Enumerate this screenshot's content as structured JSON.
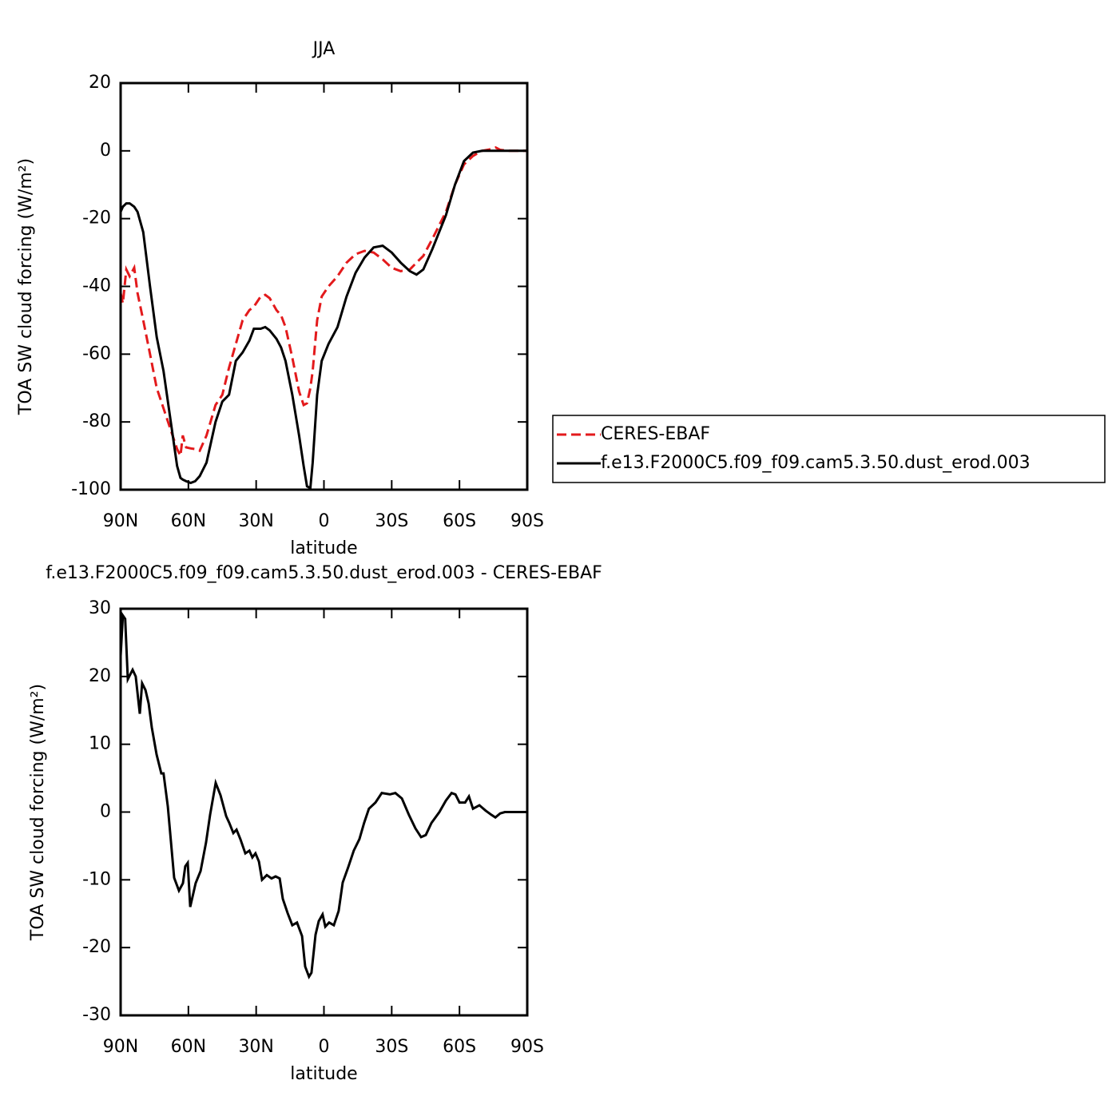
{
  "chart_data": [
    {
      "type": "line",
      "title": "JJA",
      "xlabel": "latitude",
      "ylabel": "TOA SW cloud forcing (W/m²)",
      "xlim": [
        90,
        -90
      ],
      "xticks": [
        {
          "value": 90,
          "label": "90N"
        },
        {
          "value": 60,
          "label": "60N"
        },
        {
          "value": 30,
          "label": "30N"
        },
        0,
        {
          "value": -30,
          "label": "30S"
        },
        {
          "value": -60,
          "label": "60S"
        },
        {
          "value": -90,
          "label": "90S"
        }
      ],
      "ylim": [
        -100,
        20
      ],
      "yticks": [
        -100,
        -80,
        -60,
        -40,
        -20,
        0,
        20
      ],
      "legend": "right",
      "x": [
        90,
        89,
        87.5,
        86,
        84,
        82.5,
        80,
        77,
        74,
        71,
        68,
        65,
        63.5,
        62.5,
        61,
        59,
        57,
        55,
        52,
        48,
        45,
        42,
        39,
        36,
        33,
        31,
        28,
        26,
        24,
        21,
        19,
        17,
        14,
        11,
        9,
        7.5,
        6,
        5,
        3,
        1,
        -2,
        -6,
        -10,
        -14,
        -18,
        -22,
        -26,
        -30,
        -34,
        -38,
        -41,
        -44,
        -48,
        -54,
        -58,
        -62,
        -66,
        -70,
        -74,
        -76,
        -78,
        -82,
        -90
      ],
      "series": [
        {
          "name": "CERES-EBAF",
          "color": "#e31a1c",
          "dash": true,
          "values": [
            -42,
            -45,
            -35,
            -37,
            -34.5,
            -42,
            -50,
            -60,
            -70,
            -76,
            -82,
            -88,
            -90,
            -84,
            -87.5,
            -87.8,
            -88,
            -88.5,
            -84,
            -75,
            -72,
            -64,
            -57,
            -50,
            -47,
            -46,
            -43,
            -42.5,
            -43.5,
            -47,
            -48.5,
            -52,
            -61,
            -71,
            -75,
            -74.5,
            -70,
            -65,
            -50,
            -43,
            -40,
            -37,
            -33,
            -30.5,
            -29.5,
            -30,
            -32,
            -34.5,
            -35.5,
            -35,
            -33,
            -31,
            -26,
            -18,
            -10,
            -4,
            -1.5,
            0,
            0.5,
            1,
            0.3,
            0,
            0
          ]
        },
        {
          "name": "f.e13.F2000C5.f09_f09.cam5.3.50.dust_erod.003",
          "color": "#000000",
          "dash": false,
          "values": [
            -18,
            -16.5,
            -15.5,
            -15.5,
            -16.5,
            -18,
            -24,
            -40,
            -55,
            -65,
            -79,
            -93,
            -96.5,
            -97,
            -97.5,
            -98,
            -97.5,
            -96,
            -92,
            -80,
            -74,
            -72,
            -62,
            -59.5,
            -56,
            -52.5,
            -52.5,
            -52,
            -53,
            -55.5,
            -58,
            -62,
            -72,
            -84,
            -93,
            -99,
            -99.5,
            -92,
            -72,
            -62,
            -57,
            -52,
            -43,
            -36,
            -31.5,
            -28.5,
            -28,
            -30,
            -33,
            -35.5,
            -36.5,
            -35,
            -29,
            -19,
            -10,
            -3,
            -0.5,
            0,
            0,
            0,
            0,
            0,
            0
          ]
        }
      ]
    },
    {
      "type": "line",
      "title": "f.e13.F2000C5.f09_f09.cam5.3.50.dust_erod.003 - CERES-EBAF",
      "xlabel": "latitude",
      "ylabel": "TOA SW cloud forcing (W/m²)",
      "xlim": [
        90,
        -90
      ],
      "xticks": [
        {
          "value": 90,
          "label": "90N"
        },
        {
          "value": 60,
          "label": "60N"
        },
        {
          "value": 30,
          "label": "30N"
        },
        0,
        {
          "value": -30,
          "label": "30S"
        },
        {
          "value": -60,
          "label": "60S"
        },
        {
          "value": -90,
          "label": "90S"
        }
      ],
      "ylim": [
        -30,
        30
      ],
      "yticks": [
        -30,
        -20,
        -10,
        0,
        10,
        20,
        30
      ],
      "color": "#000000",
      "x": [
        90,
        89,
        88,
        86.8,
        84.7,
        83.3,
        81.5,
        80.5,
        79,
        77.6,
        76.2,
        74.1,
        72,
        71,
        69.1,
        66.3,
        64.2,
        62.4,
        61.4,
        60.3,
        59.2,
        56.8,
        54.6,
        52.2,
        50.4,
        47.9,
        45.8,
        43.3,
        41.9,
        40.1,
        38.7,
        37,
        34.8,
        33,
        31.7,
        30.3,
        28.8,
        27.4,
        25.3,
        23.2,
        21.4,
        19.6,
        18.2,
        16.1,
        14,
        11.9,
        9.7,
        8.3,
        6.6,
        5.5,
        3.7,
        2.3,
        0.6,
        -0.6,
        -2.3,
        -4.4,
        -6.5,
        -8.3,
        -10.8,
        -13.2,
        -15.7,
        -17.8,
        -19.9,
        -22.8,
        -25.6,
        -29.2,
        -31.6,
        -34.5,
        -37.6,
        -40.5,
        -43,
        -45.1,
        -47.6,
        -51.1,
        -54,
        -56.5,
        -58.2,
        -60,
        -62.5,
        -64.2,
        -66,
        -68.8,
        -71.6,
        -74.1,
        -75.9,
        -78,
        -80.1,
        -90
      ],
      "values": [
        23,
        29,
        28.5,
        19.6,
        21,
        20,
        14.5,
        19,
        18,
        16,
        12.5,
        8.5,
        5.7,
        5.7,
        0.8,
        -9.7,
        -11.6,
        -10.5,
        -8,
        -7.5,
        -14,
        -10.5,
        -8.7,
        -4.5,
        -0.4,
        4.3,
        2.5,
        -0.6,
        -1.6,
        -3.1,
        -2.6,
        -4,
        -6.1,
        -5.7,
        -6.7,
        -6.1,
        -7.3,
        -10,
        -9.3,
        -9.8,
        -9.5,
        -9.8,
        -12.8,
        -14.9,
        -16.7,
        -16.3,
        -18.3,
        -22.8,
        -24.3,
        -23.7,
        -18.1,
        -16.1,
        -15.1,
        -16.9,
        -16.3,
        -16.7,
        -14.6,
        -10.4,
        -8.1,
        -5.7,
        -4,
        -1.6,
        0.5,
        1.4,
        2.8,
        2.6,
        2.8,
        2,
        -0.4,
        -2.4,
        -3.7,
        -3.4,
        -1.6,
        0,
        1.7,
        2.8,
        2.6,
        1.4,
        1.4,
        2.3,
        0.5,
        1,
        0.2,
        -0.4,
        -0.8,
        -0.2,
        0,
        0
      ]
    }
  ]
}
